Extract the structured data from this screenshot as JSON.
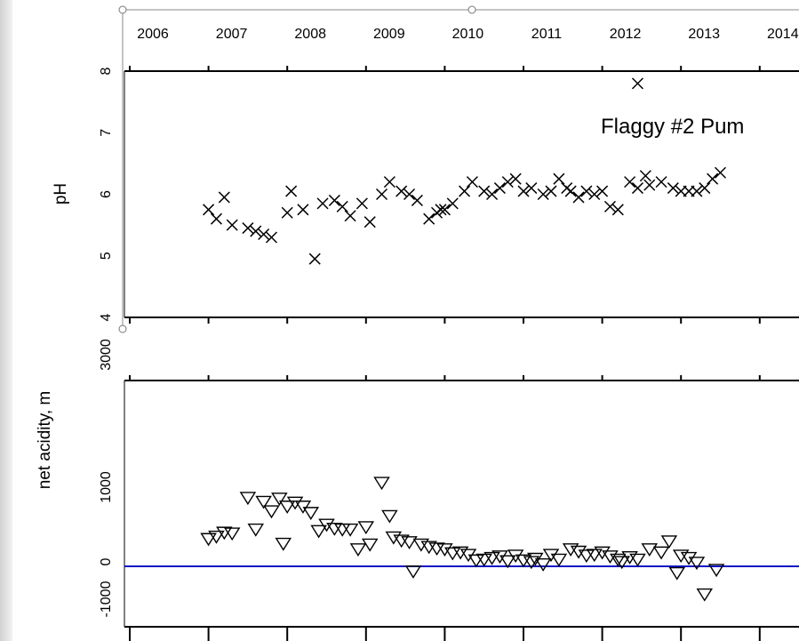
{
  "chart_data": [
    {
      "type": "scatter",
      "title": "Flaggy #2 Pum",
      "ylabel": "pH",
      "xlim": [
        2006,
        2014.5
      ],
      "ylim": [
        4,
        8
      ],
      "x_ticks": [
        "2006",
        "2007",
        "2008",
        "2009",
        "2010",
        "2011",
        "2012",
        "2013",
        "2014"
      ],
      "y_ticks": [
        "4",
        "5",
        "6",
        "7",
        "8"
      ],
      "marker": "x",
      "points": [
        [
          2007.0,
          5.75
        ],
        [
          2007.1,
          5.6
        ],
        [
          2007.2,
          5.95
        ],
        [
          2007.3,
          5.5
        ],
        [
          2007.5,
          5.45
        ],
        [
          2007.6,
          5.4
        ],
        [
          2007.7,
          5.35
        ],
        [
          2007.8,
          5.3
        ],
        [
          2008.0,
          5.7
        ],
        [
          2008.05,
          6.05
        ],
        [
          2008.2,
          5.75
        ],
        [
          2008.35,
          4.95
        ],
        [
          2008.45,
          5.85
        ],
        [
          2008.6,
          5.9
        ],
        [
          2008.7,
          5.8
        ],
        [
          2008.8,
          5.65
        ],
        [
          2008.95,
          5.85
        ],
        [
          2009.05,
          5.55
        ],
        [
          2009.2,
          6.0
        ],
        [
          2009.3,
          6.2
        ],
        [
          2009.45,
          6.05
        ],
        [
          2009.55,
          6.0
        ],
        [
          2009.65,
          5.9
        ],
        [
          2009.8,
          5.6
        ],
        [
          2009.9,
          5.7
        ],
        [
          2009.95,
          5.75
        ],
        [
          2010.0,
          5.75
        ],
        [
          2010.1,
          5.85
        ],
        [
          2010.25,
          6.05
        ],
        [
          2010.35,
          6.2
        ],
        [
          2010.5,
          6.05
        ],
        [
          2010.6,
          6.0
        ],
        [
          2010.7,
          6.1
        ],
        [
          2010.8,
          6.2
        ],
        [
          2010.9,
          6.25
        ],
        [
          2011.0,
          6.05
        ],
        [
          2011.1,
          6.1
        ],
        [
          2011.25,
          6.0
        ],
        [
          2011.35,
          6.05
        ],
        [
          2011.45,
          6.25
        ],
        [
          2011.55,
          6.1
        ],
        [
          2011.6,
          6.05
        ],
        [
          2011.7,
          5.95
        ],
        [
          2011.8,
          6.05
        ],
        [
          2011.9,
          6.0
        ],
        [
          2012.0,
          6.05
        ],
        [
          2012.1,
          5.8
        ],
        [
          2012.2,
          5.75
        ],
        [
          2012.35,
          6.2
        ],
        [
          2012.45,
          6.1
        ],
        [
          2012.55,
          6.3
        ],
        [
          2012.6,
          6.15
        ],
        [
          2012.75,
          6.2
        ],
        [
          2012.9,
          6.1
        ],
        [
          2013.0,
          6.05
        ],
        [
          2013.1,
          6.05
        ],
        [
          2013.2,
          6.05
        ],
        [
          2013.3,
          6.1
        ],
        [
          2013.4,
          6.25
        ],
        [
          2013.5,
          6.35
        ],
        [
          2012.45,
          7.8
        ]
      ]
    },
    {
      "type": "scatter",
      "ylabel": "net acidity, m",
      "xlim": [
        2006,
        2014.5
      ],
      "ylim": [
        -1000,
        3000
      ],
      "y_ticks": [
        "-1000",
        "0",
        "1000",
        "3000"
      ],
      "marker": "triangle-down",
      "reference_line": {
        "y": 0,
        "color": "#1010c8"
      },
      "points": [
        [
          2007.0,
          350
        ],
        [
          2007.1,
          380
        ],
        [
          2007.2,
          430
        ],
        [
          2007.3,
          420
        ],
        [
          2007.5,
          870
        ],
        [
          2007.6,
          470
        ],
        [
          2007.7,
          820
        ],
        [
          2007.8,
          700
        ],
        [
          2007.9,
          860
        ],
        [
          2007.95,
          290
        ],
        [
          2008.0,
          760
        ],
        [
          2008.1,
          810
        ],
        [
          2008.2,
          760
        ],
        [
          2008.3,
          680
        ],
        [
          2008.4,
          450
        ],
        [
          2008.5,
          530
        ],
        [
          2008.6,
          480
        ],
        [
          2008.7,
          470
        ],
        [
          2008.8,
          470
        ],
        [
          2008.9,
          220
        ],
        [
          2009.0,
          500
        ],
        [
          2009.05,
          280
        ],
        [
          2009.2,
          1060
        ],
        [
          2009.3,
          640
        ],
        [
          2009.35,
          370
        ],
        [
          2009.45,
          330
        ],
        [
          2009.55,
          310
        ],
        [
          2009.6,
          -60
        ],
        [
          2009.7,
          280
        ],
        [
          2009.8,
          250
        ],
        [
          2009.9,
          230
        ],
        [
          2010.0,
          220
        ],
        [
          2010.1,
          170
        ],
        [
          2010.2,
          180
        ],
        [
          2010.3,
          150
        ],
        [
          2010.4,
          80
        ],
        [
          2010.5,
          90
        ],
        [
          2010.6,
          110
        ],
        [
          2010.7,
          130
        ],
        [
          2010.8,
          70
        ],
        [
          2010.9,
          140
        ],
        [
          2011.0,
          80
        ],
        [
          2011.1,
          60
        ],
        [
          2011.15,
          100
        ],
        [
          2011.25,
          30
        ],
        [
          2011.35,
          150
        ],
        [
          2011.45,
          90
        ],
        [
          2011.6,
          220
        ],
        [
          2011.7,
          190
        ],
        [
          2011.8,
          140
        ],
        [
          2011.9,
          150
        ],
        [
          2012.0,
          180
        ],
        [
          2012.1,
          130
        ],
        [
          2012.2,
          90
        ],
        [
          2012.25,
          60
        ],
        [
          2012.35,
          120
        ],
        [
          2012.45,
          90
        ],
        [
          2012.6,
          220
        ],
        [
          2012.75,
          180
        ],
        [
          2012.85,
          320
        ],
        [
          2012.95,
          -80
        ],
        [
          2013.0,
          140
        ],
        [
          2013.1,
          110
        ],
        [
          2013.2,
          50
        ],
        [
          2013.3,
          -350
        ],
        [
          2013.45,
          -40
        ]
      ]
    }
  ]
}
